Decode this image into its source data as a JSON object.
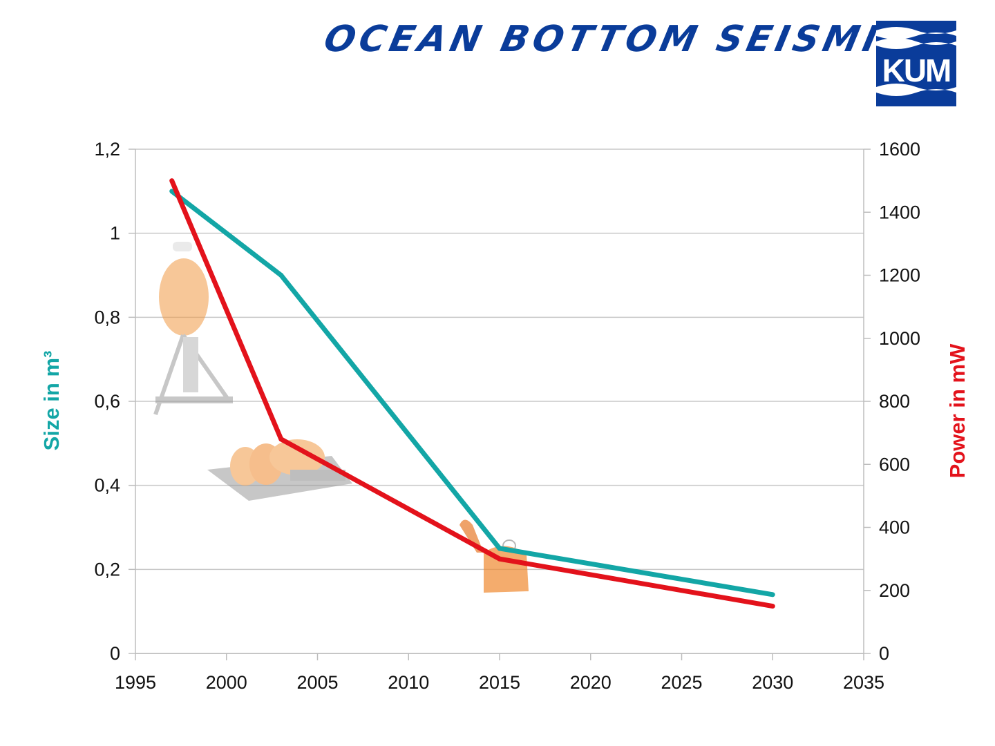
{
  "header": {
    "title": "OCEAN BOTTOM SEISMICS",
    "logo_text": "KUM",
    "brand_color": "#0a3c9a"
  },
  "chart_data": {
    "type": "line",
    "title": "",
    "xlabel": "",
    "ylabel": "Size in m³",
    "y2label": "Power in mW",
    "xlim": [
      1995,
      2035
    ],
    "xticks": [
      1995,
      2000,
      2005,
      2010,
      2015,
      2020,
      2025,
      2030,
      2035
    ],
    "ylim": [
      0,
      1.2
    ],
    "yticks": [
      "0",
      "0,2",
      "0,4",
      "0,6",
      "0,8",
      "1",
      "1,2"
    ],
    "yticks_values": [
      0,
      0.2,
      0.4,
      0.6,
      0.8,
      1.0,
      1.2
    ],
    "y2lim": [
      0,
      1600
    ],
    "y2ticks": [
      0,
      200,
      400,
      600,
      800,
      1000,
      1200,
      1400,
      1600
    ],
    "grid": true,
    "series": [
      {
        "axis": "left",
        "color": "#13a6a6",
        "x": [
          1997,
          2003,
          2015,
          2030
        ],
        "values": [
          1.1,
          0.9,
          0.25,
          0.14
        ]
      },
      {
        "axis": "right",
        "color": "#e3121b",
        "x": [
          1997,
          2003,
          2015,
          2030
        ],
        "values": [
          1500,
          680,
          300,
          150
        ]
      }
    ]
  }
}
